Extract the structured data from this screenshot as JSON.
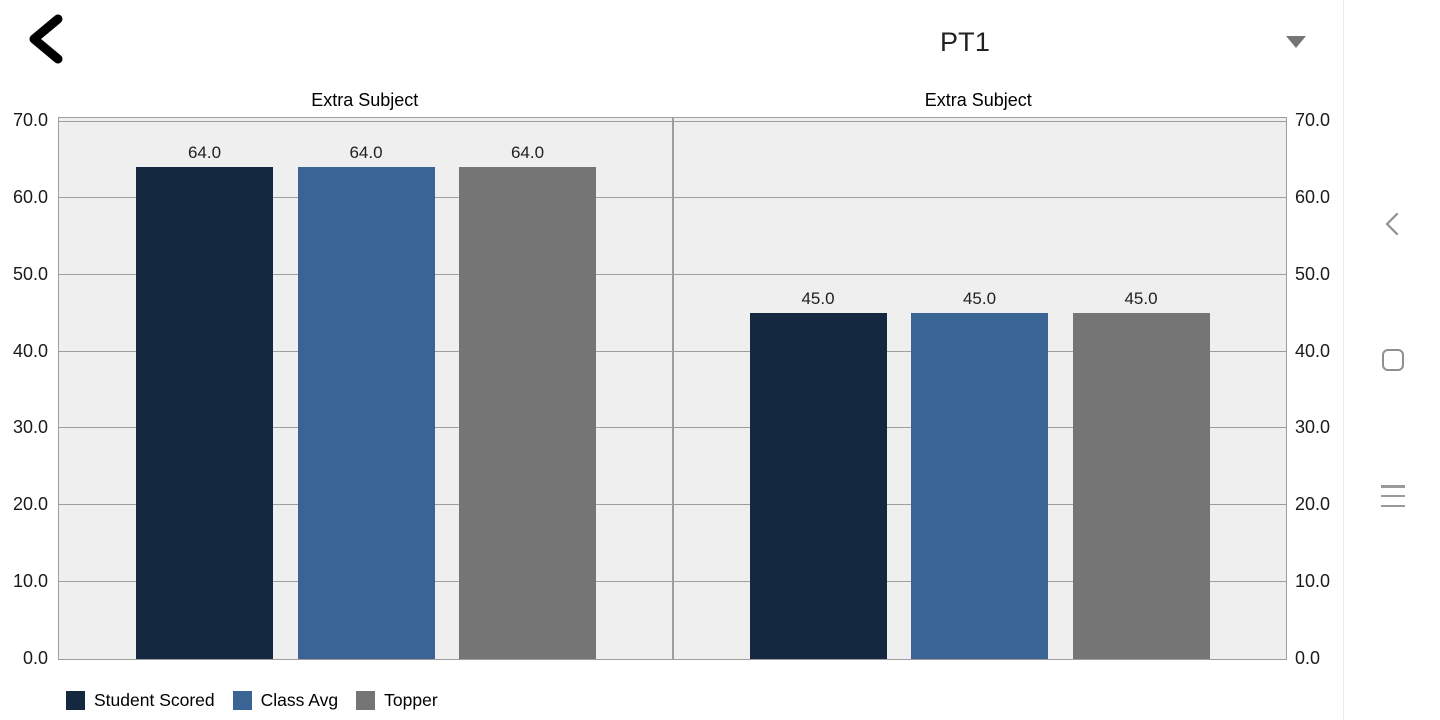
{
  "topbar": {
    "spinner_value": "PT1",
    "back_icon": "back-arrow-icon",
    "caret_icon": "dropdown-caret-icon"
  },
  "chart_data": {
    "type": "bar",
    "panels": [
      {
        "title": "Extra Subject",
        "categories": [
          "Student Scored",
          "Class Avg",
          "Topper"
        ],
        "values": [
          64.0,
          64.0,
          64.0
        ],
        "value_labels": [
          "64.0",
          "64.0",
          "64.0"
        ]
      },
      {
        "title": "Extra Subject",
        "categories": [
          "Student Scored",
          "Class Avg",
          "Topper"
        ],
        "values": [
          45.0,
          45.0,
          45.0
        ],
        "value_labels": [
          "45.0",
          "45.0",
          "45.0"
        ]
      }
    ],
    "series": [
      {
        "name": "Student Scored",
        "color": "#14293f"
      },
      {
        "name": "Class Avg",
        "color": "#3a6494"
      },
      {
        "name": "Topper",
        "color": "#757575"
      }
    ],
    "ylim": [
      0,
      70
    ],
    "yticks": [
      0,
      10,
      20,
      30,
      40,
      50,
      60,
      70
    ],
    "ytick_labels": [
      "0.0",
      "10.0",
      "20.0",
      "30.0",
      "40.0",
      "50.0",
      "60.0",
      "70.0"
    ],
    "grid": true,
    "legend_position": "bottom"
  },
  "legend": {
    "entries": [
      {
        "label": "Student Scored",
        "color": "#14293f"
      },
      {
        "label": "Class Avg",
        "color": "#3a6494"
      },
      {
        "label": "Topper",
        "color": "#757575"
      }
    ]
  },
  "nav": {
    "icons": [
      "nav-back-icon",
      "nav-home-icon",
      "nav-recents-icon"
    ]
  },
  "colors": {
    "plot_background": "#efefef",
    "gridline": "#9e9e9e",
    "text": "#212121",
    "nav_icon": "#8f8f8f"
  }
}
